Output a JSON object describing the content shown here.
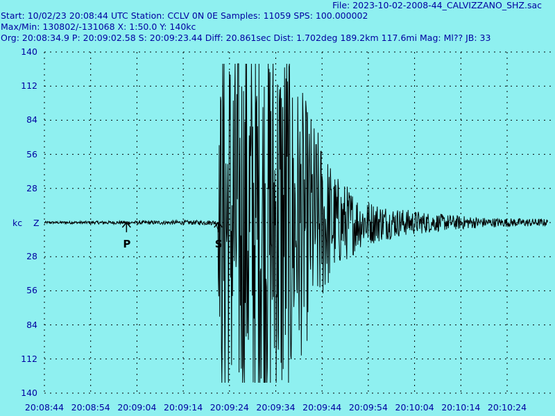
{
  "header": {
    "file": "File: 2023-10-02-2008-44_CALVIZZANO_SHZ.sac",
    "line1": "Start: 10/02/23 20:08:44 UTC Station: CCLV 0N 0E Samples: 11059  SPS: 100.000002",
    "line2": "Max/Min: 130802/-131068 X: 1:50.0 Y: 140kc",
    "line3": "Org: 20:08:34.9 P: 20:09:02.58 S: 20:09:23.44 Diff: 20.861sec Dist: 1.702deg 189.2km 117.6mi  Mag: Ml?? JB: 33"
  },
  "axis": {
    "unit": "kc",
    "component": "Z"
  },
  "colors": {
    "background": "#8ff0f0",
    "text": "#0000a0",
    "trace": "#000000",
    "grid": "#000000"
  },
  "chart_data": {
    "type": "line",
    "x_ticks": [
      "20:08:44",
      "20:08:54",
      "20:09:04",
      "20:09:14",
      "20:09:24",
      "20:09:34",
      "20:09:44",
      "20:09:54",
      "20:10:04",
      "20:10:14",
      "20:10:24"
    ],
    "y_ticks": [
      "140",
      "112",
      "84",
      "56",
      "28",
      "kc",
      "28",
      "56",
      "84",
      "112",
      "140"
    ],
    "ylim": [
      -140,
      140
    ],
    "xlim_seconds": [
      0,
      114
    ],
    "grid": true,
    "grid_style": "dashed",
    "picks": [
      {
        "label": "P",
        "time": "20:09:02.58",
        "t": 18.6
      },
      {
        "label": "S",
        "time": "20:09:23.44",
        "t": 39.4
      }
    ],
    "envelope": [
      {
        "t": 0,
        "amp": 1
      },
      {
        "t": 39,
        "amp": 2
      },
      {
        "t": 40,
        "amp": 131
      },
      {
        "t": 56,
        "amp": 131
      },
      {
        "t": 60,
        "amp": 95
      },
      {
        "t": 66,
        "amp": 40
      },
      {
        "t": 72,
        "amp": 20
      },
      {
        "t": 80,
        "amp": 12
      },
      {
        "t": 90,
        "amp": 7
      },
      {
        "t": 100,
        "amp": 4
      },
      {
        "t": 114,
        "amp": 3
      }
    ]
  }
}
